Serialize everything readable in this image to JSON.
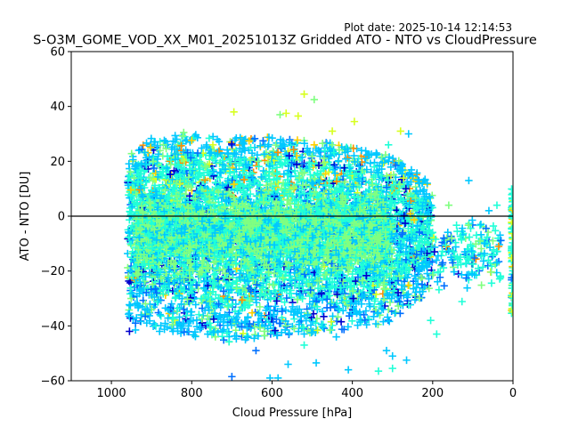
{
  "chart_data": {
    "type": "scatter",
    "title": "S-O3M_GOME_VOD_XX_M01_20251013Z Gridded ATO - NTO vs CloudPressure",
    "subtitle": "Plot date: 2025-10-14 12:14:53",
    "xlabel": "Cloud Pressure [hPa]",
    "ylabel": "ATO - NTO [DU]",
    "xlim": [
      1100,
      0
    ],
    "ylim": [
      -60,
      60
    ],
    "x_inverted": true,
    "x_ticks": [
      1000,
      800,
      600,
      400,
      200,
      0
    ],
    "y_ticks": [
      -60,
      -40,
      -20,
      0,
      20,
      40,
      60
    ],
    "x_tick_labels": [
      "1000",
      "800",
      "600",
      "400",
      "200",
      "0"
    ],
    "y_tick_labels": [
      "−60",
      "−40",
      "−20",
      "0",
      "20",
      "40",
      "60"
    ],
    "reference_line_y": 0,
    "marker": "plus",
    "grid": false,
    "legend": "none",
    "colormap": [
      "#0000cd",
      "#0070ff",
      "#00c8ff",
      "#20ffd8",
      "#80ff80",
      "#d8ff20",
      "#ffd000",
      "#ff9000"
    ],
    "density_profile": [
      {
        "x": 960,
        "y_low": -25,
        "y_high": 15
      },
      {
        "x": 900,
        "y_low": -28,
        "y_high": 22
      },
      {
        "x": 800,
        "y_low": -32,
        "y_high": 23
      },
      {
        "x": 700,
        "y_low": -34,
        "y_high": 22
      },
      {
        "x": 600,
        "y_low": -32,
        "y_high": 22
      },
      {
        "x": 500,
        "y_low": -31,
        "y_high": 21
      },
      {
        "x": 400,
        "y_low": -29,
        "y_high": 18
      },
      {
        "x": 300,
        "y_low": -27,
        "y_high": 15
      },
      {
        "x": 250,
        "y_low": -20,
        "y_high": 10
      },
      {
        "x": 200,
        "y_low": -15,
        "y_high": 5
      }
    ],
    "outliers": [
      {
        "x": 520,
        "y": 44.5
      },
      {
        "x": 495,
        "y": 42.5
      },
      {
        "x": 695,
        "y": 38
      },
      {
        "x": 580,
        "y": 37
      },
      {
        "x": 565,
        "y": 37.5
      },
      {
        "x": 535,
        "y": 36.5
      },
      {
        "x": 395,
        "y": 34.5
      },
      {
        "x": 260,
        "y": 30
      },
      {
        "x": 280,
        "y": 31
      },
      {
        "x": 820,
        "y": 30.5
      },
      {
        "x": 450,
        "y": 31
      },
      {
        "x": 110,
        "y": 13
      },
      {
        "x": 310,
        "y": 26
      },
      {
        "x": 495,
        "y": 26
      },
      {
        "x": 955,
        "y": -42
      },
      {
        "x": 940,
        "y": -41.5
      },
      {
        "x": 880,
        "y": -42
      },
      {
        "x": 700,
        "y": -58.5
      },
      {
        "x": 605,
        "y": -59
      },
      {
        "x": 585,
        "y": -59
      },
      {
        "x": 560,
        "y": -54
      },
      {
        "x": 490,
        "y": -53.5
      },
      {
        "x": 410,
        "y": -56
      },
      {
        "x": 335,
        "y": -56.5
      },
      {
        "x": 300,
        "y": -55.5
      },
      {
        "x": 265,
        "y": -52.5
      },
      {
        "x": 300,
        "y": -51
      },
      {
        "x": 315,
        "y": -49
      },
      {
        "x": 190,
        "y": -43
      },
      {
        "x": 205,
        "y": -38
      },
      {
        "x": 520,
        "y": -47
      },
      {
        "x": 440,
        "y": -44
      },
      {
        "x": 940,
        "y": -39
      },
      {
        "x": 820,
        "y": -39
      },
      {
        "x": 760,
        "y": -43
      },
      {
        "x": 640,
        "y": -49
      },
      {
        "x": 660,
        "y": -44
      },
      {
        "x": 150,
        "y": -17
      },
      {
        "x": 175,
        "y": -17
      },
      {
        "x": 120,
        "y": -13
      },
      {
        "x": 70,
        "y": -10
      },
      {
        "x": 50,
        "y": -9
      },
      {
        "x": 40,
        "y": 4
      },
      {
        "x": 60,
        "y": 2
      },
      {
        "x": 80,
        "y": -3
      },
      {
        "x": 160,
        "y": 4
      }
    ],
    "edge_cluster": {
      "x": 0,
      "y_low": -36,
      "y_high": 10
    }
  }
}
